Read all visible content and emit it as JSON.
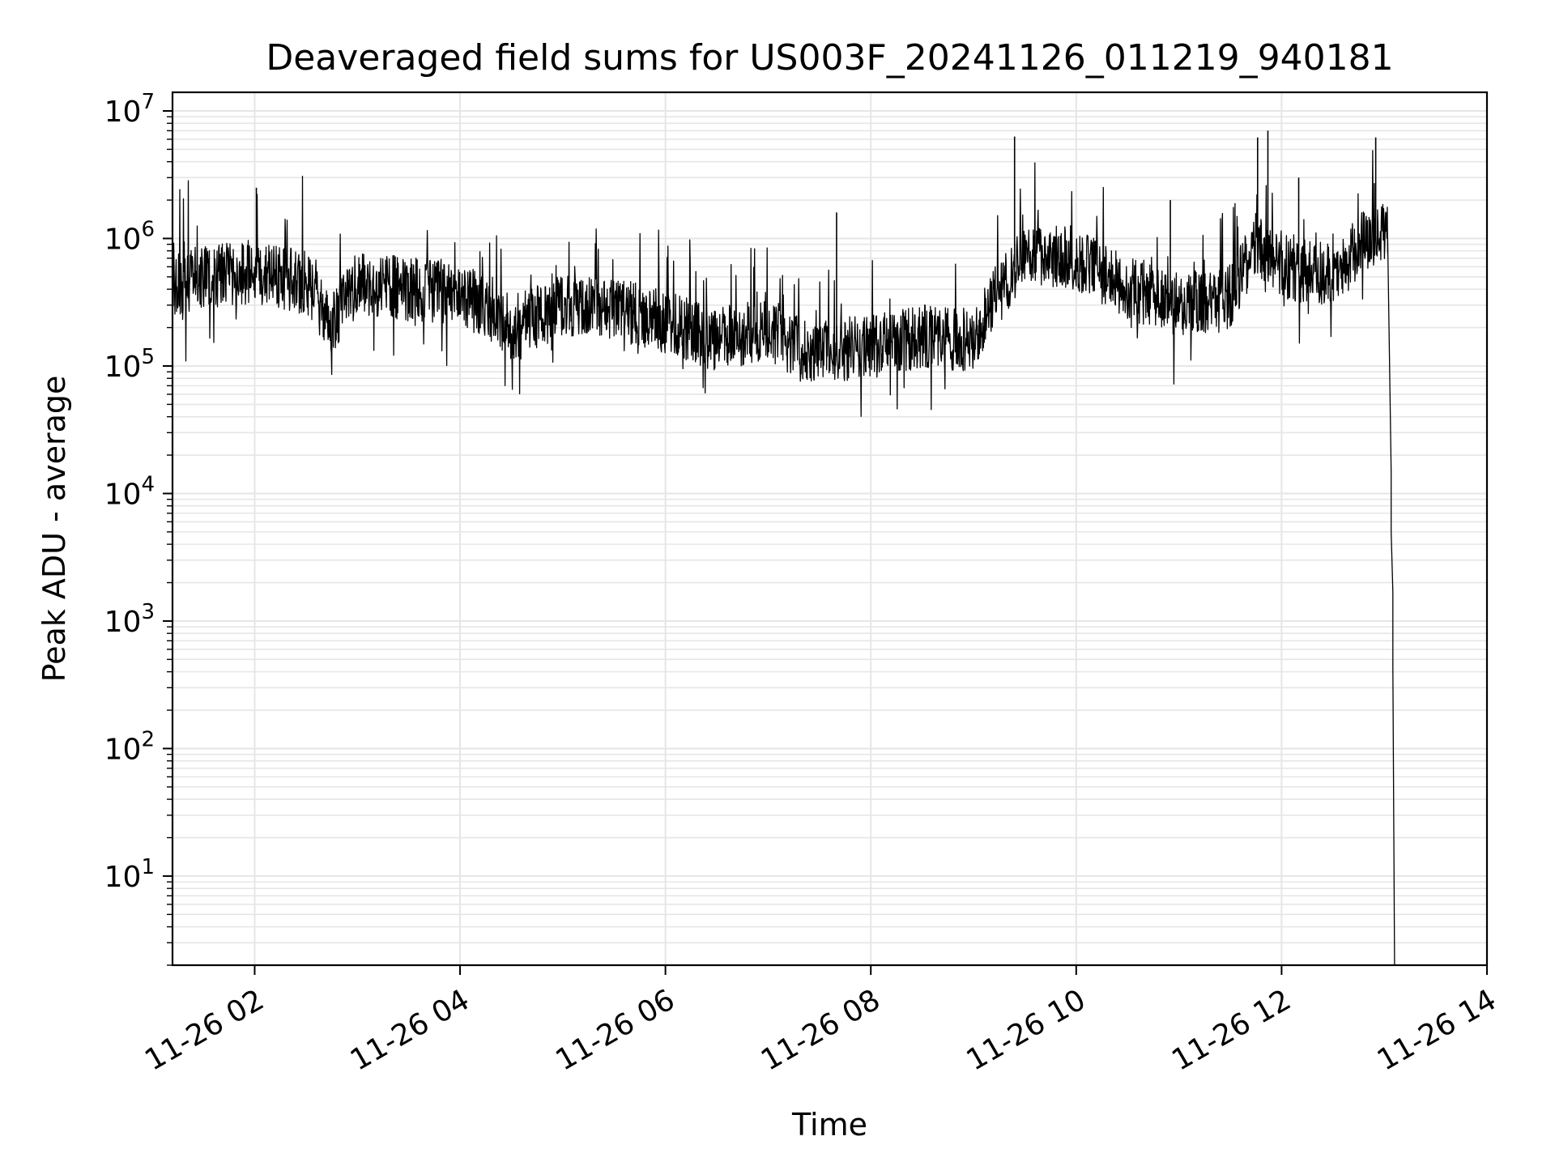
{
  "chart_data": {
    "type": "line",
    "title": "Deaveraged field sums for US003F_20241126_011219_940181",
    "xlabel": "Time",
    "ylabel": "Peak ADU - average",
    "y_scale": "log",
    "ylim": [
      2,
      14000000
    ],
    "xlim": [
      "2024-11-26T01:12",
      "2024-11-26T14:00"
    ],
    "grid": {
      "major": true,
      "minor": true
    },
    "line_color": "#000000",
    "grid_color": "#e6e6e6",
    "x_ticks": [
      {
        "t": "2024-11-26T02:00",
        "label": "11-26 02"
      },
      {
        "t": "2024-11-26T04:00",
        "label": "11-26 04"
      },
      {
        "t": "2024-11-26T06:00",
        "label": "11-26 06"
      },
      {
        "t": "2024-11-26T08:00",
        "label": "11-26 08"
      },
      {
        "t": "2024-11-26T10:00",
        "label": "11-26 10"
      },
      {
        "t": "2024-11-26T12:00",
        "label": "11-26 12"
      },
      {
        "t": "2024-11-26T14:00",
        "label": "11-26 14"
      }
    ],
    "y_ticks": [
      {
        "value": 10,
        "base": "10",
        "exp": "1"
      },
      {
        "value": 100,
        "base": "10",
        "exp": "2"
      },
      {
        "value": 1000,
        "base": "10",
        "exp": "3"
      },
      {
        "value": 10000,
        "base": "10",
        "exp": "4"
      },
      {
        "value": 100000,
        "base": "10",
        "exp": "5"
      },
      {
        "value": 1000000,
        "base": "10",
        "exp": "6"
      },
      {
        "value": 10000000,
        "base": "10",
        "exp": "7"
      }
    ],
    "series": [
      {
        "trend": [
          [
            "2024-11-26T01:12",
            430000
          ],
          [
            "2024-11-26T01:30",
            500000
          ],
          [
            "2024-11-26T02:00",
            550000
          ],
          [
            "2024-11-26T02:30",
            450000
          ],
          [
            "2024-11-26T02:45",
            220000
          ],
          [
            "2024-11-26T03:00",
            450000
          ],
          [
            "2024-11-26T03:30",
            400000
          ],
          [
            "2024-11-26T04:00",
            380000
          ],
          [
            "2024-11-26T04:30",
            200000
          ],
          [
            "2024-11-26T05:00",
            300000
          ],
          [
            "2024-11-26T05:30",
            280000
          ],
          [
            "2024-11-26T06:00",
            220000
          ],
          [
            "2024-11-26T06:30",
            160000
          ],
          [
            "2024-11-26T07:00",
            200000
          ],
          [
            "2024-11-26T07:20",
            130000
          ],
          [
            "2024-11-26T08:00",
            140000
          ],
          [
            "2024-11-26T08:30",
            170000
          ],
          [
            "2024-11-26T09:00",
            160000
          ],
          [
            "2024-11-26T09:10",
            300000
          ],
          [
            "2024-11-26T09:30",
            800000
          ],
          [
            "2024-11-26T10:00",
            700000
          ],
          [
            "2024-11-26T10:30",
            400000
          ],
          [
            "2024-11-26T11:00",
            300000
          ],
          [
            "2024-11-26T11:30",
            350000
          ],
          [
            "2024-11-26T11:45",
            900000
          ],
          [
            "2024-11-26T12:00",
            600000
          ],
          [
            "2024-11-26T12:30",
            500000
          ],
          [
            "2024-11-26T12:50",
            1000000
          ],
          [
            "2024-11-26T13:02",
            1200000
          ]
        ],
        "spikes": [
          [
            "2024-11-26T02:01",
            2500000
          ],
          [
            "2024-11-26T09:24",
            6300000
          ],
          [
            "2024-11-26T11:52",
            7000000
          ],
          [
            "2024-11-26T11:46",
            6200000
          ],
          [
            "2024-11-26T12:55",
            6200000
          ],
          [
            "2024-11-26T12:10",
            3000000
          ],
          [
            "2024-11-26T10:55",
            2000000
          ],
          [
            "2024-11-26T07:40",
            1600000
          ]
        ],
        "tail": [
          [
            "2024-11-26T13:02",
            1000000
          ],
          [
            "2024-11-26T13:04",
            15000
          ],
          [
            "2024-11-26T13:04",
            5000
          ],
          [
            "2024-11-26T13:05",
            1700
          ],
          [
            "2024-11-26T13:05",
            450
          ],
          [
            "2024-11-26T13:06",
            2
          ]
        ]
      }
    ]
  }
}
